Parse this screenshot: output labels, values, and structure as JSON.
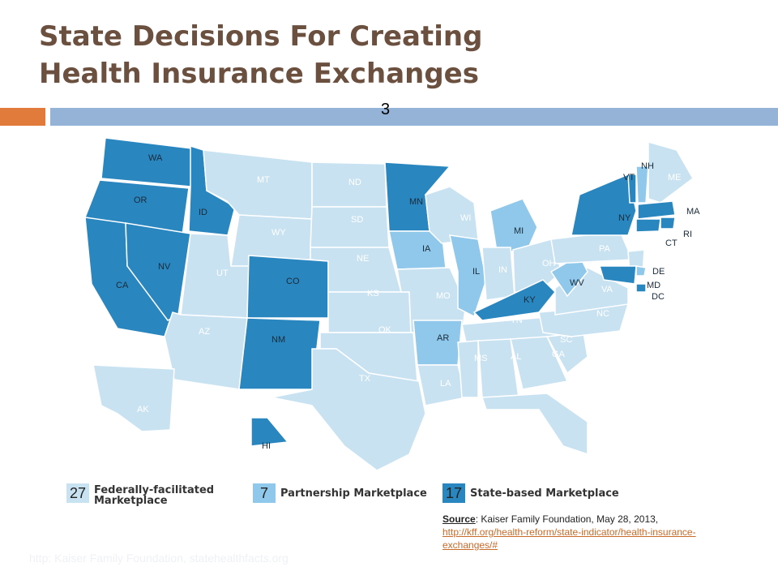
{
  "title": {
    "line1": "State Decisions For Creating",
    "line2": "Health Insurance Exchanges"
  },
  "slide_number": "3",
  "colors": {
    "federal": "#c9e2f1",
    "partnership": "#8fc8ea",
    "state_based": "#2a86bf",
    "title": "#6b4f3f",
    "accent_orange": "#e07b3c",
    "accent_blue": "#95b3d7"
  },
  "map": {
    "states": {
      "WA": "state",
      "OR": "state",
      "CA": "state",
      "NV": "state",
      "ID": "state",
      "MT": "federal",
      "WY": "federal",
      "UT": "federal",
      "AZ": "federal",
      "CO": "state",
      "NM": "state",
      "ND": "federal",
      "SD": "federal",
      "NE": "federal",
      "KS": "federal",
      "OK": "federal",
      "TX": "federal",
      "MN": "state",
      "IA": "partnership",
      "MO": "federal",
      "AR": "partnership",
      "LA": "federal",
      "WI": "federal",
      "IL": "partnership",
      "MI": "partnership",
      "IN": "federal",
      "OH": "federal",
      "KY": "state",
      "TN": "federal",
      "MS": "federal",
      "AL": "federal",
      "GA": "federal",
      "FL": "federal",
      "SC": "federal",
      "NC": "federal",
      "VA": "federal",
      "WV": "partnership",
      "PA": "federal",
      "NY": "state",
      "VT": "state",
      "NH": "partnership",
      "ME": "federal",
      "MA": "state",
      "RI": "state",
      "CT": "state",
      "NJ": "federal",
      "DE": "partnership",
      "MD": "state",
      "DC": "state",
      "AK": "federal",
      "HI": "state"
    }
  },
  "legend": [
    {
      "count": "27",
      "line1": "Federally-facilitated",
      "line2": "Marketplace",
      "category": "federal"
    },
    {
      "count": "7",
      "line1": "Partnership Marketplace",
      "line2": "",
      "category": "partnership"
    },
    {
      "count": "17",
      "line1": "State-based Marketplace",
      "line2": "",
      "category": "state_based"
    }
  ],
  "source": {
    "label": "Source",
    "text": ": Kaiser Family Foundation, May 28, 2013,",
    "link": "http://kff.org/health-reform/state-indicator/health-insurance-exchanges/#"
  },
  "footer_faint": "http: Kaiser Family Foundation, statehealthfacts.org"
}
